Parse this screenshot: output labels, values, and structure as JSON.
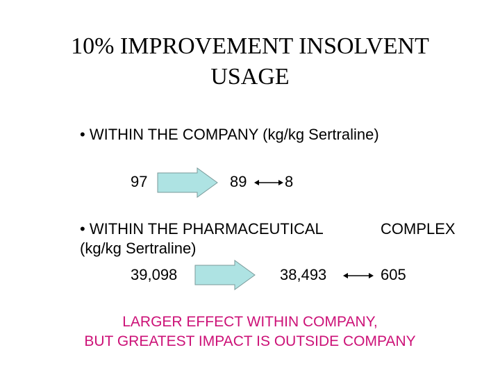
{
  "title": {
    "line1": "10% IMPROVEMENT INSOLVENT",
    "line2": "USAGE"
  },
  "within_company": {
    "heading": "• WITHIN THE COMPANY (kg/kg Sertraline)",
    "before": "97",
    "after": "89",
    "saving": "8"
  },
  "within_complex": {
    "heading_part1": "• WITHIN THE PHARMACEUTICAL",
    "heading_part2": "COMPLEX",
    "units": "(kg/kg Sertraline)",
    "before": "39,098",
    "after": "38,493",
    "saving": "605"
  },
  "conclusion": {
    "line1": "LARGER EFFECT WITHIN COMPANY,",
    "line2": "BUT GREATEST IMPACT IS OUTSIDE COMPANY"
  },
  "colors": {
    "arrow_fill": "#aee3e3",
    "arrow_stroke": "#7a9a9a",
    "conclusion_text": "#cc1177"
  }
}
